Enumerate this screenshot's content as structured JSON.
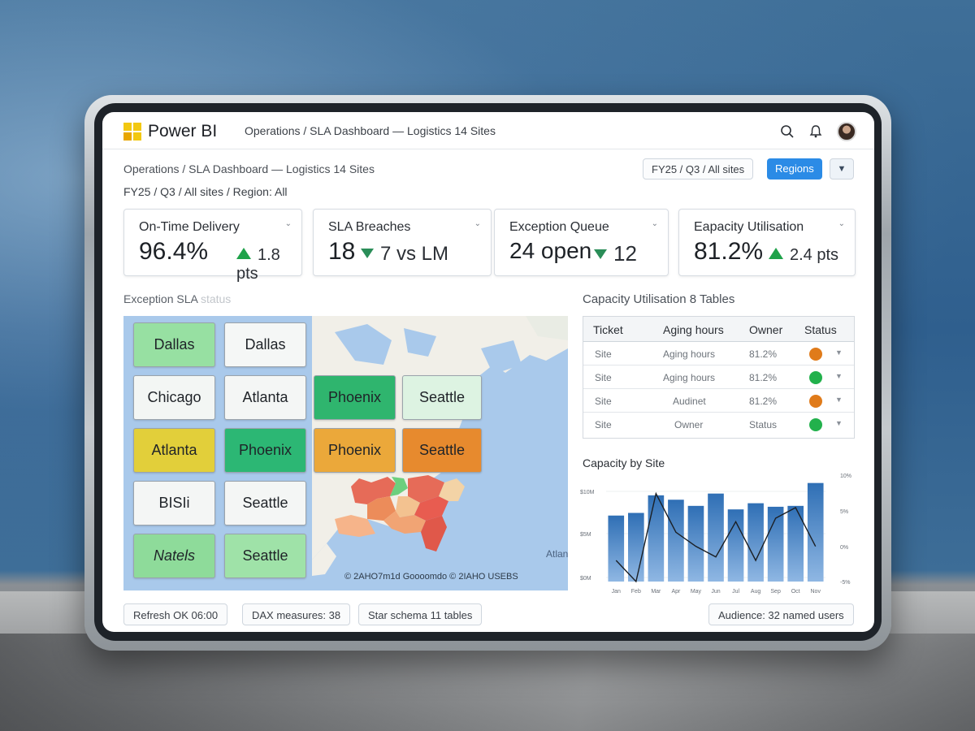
{
  "app": {
    "brand": "Power BI",
    "top_breadcrumb": "Operations / SLA Dashboard — Logistics 14 Sites"
  },
  "header": {
    "breadcrumb": "Operations / SLA Dashboard — Logistics 14 Sites",
    "filter_text": "FY25 / Q3 / All sites / Region: All",
    "period_chip": "FY25 / Q3 / All sites",
    "regions_button": "Regions"
  },
  "kpis": [
    {
      "label": "On-Time Delivery",
      "value": "96.4%",
      "delta": "1.8 pts",
      "direction": "up"
    },
    {
      "label": "SLA Breaches",
      "value": "18",
      "delta": "7 vs LM",
      "direction": "down"
    },
    {
      "label": "Exception Queue",
      "value": "24 open",
      "delta": "12",
      "direction": "down"
    },
    {
      "label": "Eapacity Utilisation",
      "value": "81.2%",
      "delta": "2.4 pts",
      "direction": "up"
    }
  ],
  "map": {
    "title": "Exception SLA",
    "title_faded": "status",
    "credit": "© 2AHO7m1d Goooomdo © 2IAHO USEBS",
    "ocean_label": "Atlantic",
    "tiles": [
      {
        "label": "Dallas",
        "color": "#97e0a2"
      },
      {
        "label": "Dallas",
        "color": "#f5f7f6"
      },
      {
        "label": "Chicago",
        "color": "#f3f6f4"
      },
      {
        "label": "Atlanta",
        "color": "#f4f6f5"
      },
      {
        "label": "Phoenix",
        "color": "#2fb56e"
      },
      {
        "label": "Seattle",
        "color": "#ddf3e2"
      },
      {
        "label": "Atlanta",
        "color": "#e2cf3a"
      },
      {
        "label": "Phoenix",
        "color": "#2cb774"
      },
      {
        "label": "Phoenix",
        "color": "#eba83a"
      },
      {
        "label": "Seattle",
        "color": "#e78a2e"
      },
      {
        "label": "BISIi",
        "color": "#f4f6f5"
      },
      {
        "label": "Seattle",
        "color": "#f4f6f5"
      },
      {
        "label": "Natels",
        "color": "#8edb9a"
      },
      {
        "label": "Seattle",
        "color": "#9fe2a8"
      }
    ]
  },
  "table": {
    "title": "Capacity Utilisation 8 Tables",
    "headers": [
      "Ticket",
      "Aging hours",
      "Owner",
      "Status"
    ],
    "rows": [
      {
        "ticket": "Site",
        "aging": "Aging hours",
        "owner": "81.2%",
        "status_color": "#e07b1a"
      },
      {
        "ticket": "Site",
        "aging": "Aging hours",
        "owner": "81.2%",
        "status_color": "#22b14c"
      },
      {
        "ticket": "Site",
        "aging": "Audinet",
        "owner": "81.2%",
        "status_color": "#e07b1a"
      },
      {
        "ticket": "Site",
        "aging": "Owner",
        "owner": "Status",
        "status_color": "#22b14c"
      }
    ]
  },
  "chart_data": {
    "type": "bar",
    "title": "Capacity by Site",
    "categories": [
      "Jan",
      "Feb",
      "Mar",
      "Apr",
      "May",
      "Jun",
      "Jul",
      "Aug",
      "Sep",
      "Oct",
      "Nov"
    ],
    "y_ticks_left": [
      "$10M",
      "$5M",
      "$0M"
    ],
    "y_ticks_right": [
      "10%",
      "5%",
      "0%",
      "-5%"
    ],
    "ylim": [
      0,
      12
    ],
    "y2lim": [
      -5,
      10
    ],
    "series": [
      {
        "type": "bar",
        "values": [
          7.5,
          7.8,
          9.8,
          9.3,
          8.6,
          10.0,
          8.2,
          8.9,
          8.5,
          8.6,
          11.2
        ]
      },
      {
        "type": "line",
        "values": [
          -2.0,
          -5.0,
          7.5,
          2.0,
          0.0,
          -1.5,
          3.5,
          -2.0,
          4.0,
          5.5,
          0.0
        ]
      }
    ]
  },
  "footer": {
    "refresh": "Refresh OK 06:00",
    "dax": "DAX measures: 38",
    "schema": "Star schema 11 tables",
    "audience": "Audience: 32 named users"
  },
  "colors": {
    "accent": "#2b8be6",
    "up": "#1fa24a",
    "down": "#2a8d58",
    "bar": "#3f80c4"
  },
  "icons": [
    "search-icon",
    "bell-icon",
    "chevron-down-icon"
  ]
}
